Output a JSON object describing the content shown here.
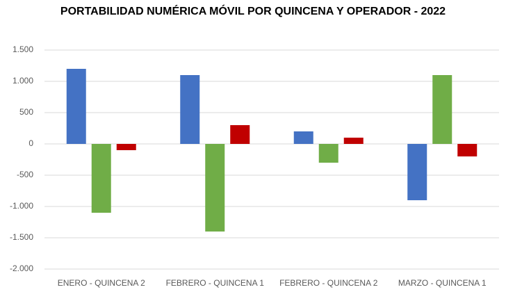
{
  "chart_data": {
    "type": "bar",
    "title": "PORTABILIDAD NUMÉRICA MÓVIL POR QUINCENA Y OPERADOR - 2022",
    "categories": [
      "ENERO - QUINCENA 2",
      "FEBRERO - QUINCENA 1",
      "FEBRERO - QUINCENA 2",
      "MARZO - QUINCENA 1"
    ],
    "series": [
      {
        "color": "#4472c4",
        "values": [
          1200,
          1100,
          200,
          -900
        ]
      },
      {
        "color": "#70ad47",
        "values": [
          -1100,
          -1400,
          -300,
          1100
        ]
      },
      {
        "color": "#c00000",
        "values": [
          -100,
          300,
          100,
          -200
        ]
      }
    ],
    "ylim": [
      -2000,
      1500
    ],
    "yticks": [
      {
        "value": -2000,
        "label": "-2.000"
      },
      {
        "value": -1500,
        "label": "-1.500"
      },
      {
        "value": -1000,
        "label": "-1.000"
      },
      -500,
      0,
      500,
      {
        "value": 1000,
        "label": "1.000"
      },
      {
        "value": 1500,
        "label": "1.500"
      }
    ],
    "grid": true
  }
}
